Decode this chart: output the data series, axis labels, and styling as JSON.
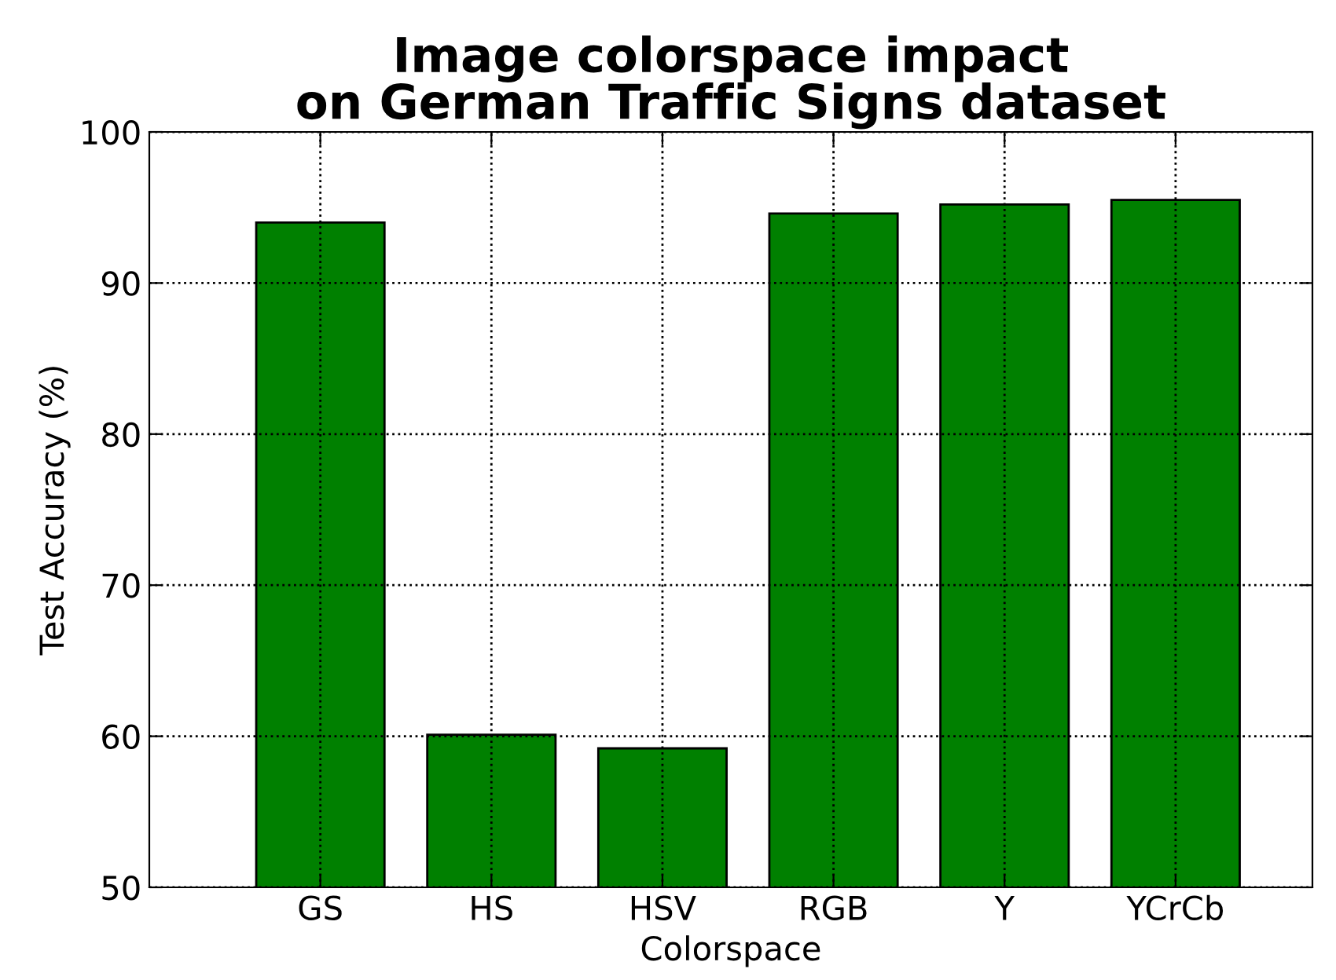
{
  "chart_data": {
    "type": "bar",
    "title": "Image colorspace impact\non German Traffic Signs dataset",
    "xlabel": "Colorspace",
    "ylabel": "Test Accuracy (%)",
    "categories": [
      "GS",
      "HS",
      "HSV",
      "RGB",
      "Y",
      "YCrCb"
    ],
    "values": [
      94.0,
      60.1,
      59.2,
      94.6,
      95.2,
      95.5
    ],
    "color": "#008000",
    "ylim": [
      50,
      100
    ],
    "yticks": [
      50,
      60,
      70,
      80,
      90,
      100
    ],
    "grid": true,
    "legend": false
  }
}
